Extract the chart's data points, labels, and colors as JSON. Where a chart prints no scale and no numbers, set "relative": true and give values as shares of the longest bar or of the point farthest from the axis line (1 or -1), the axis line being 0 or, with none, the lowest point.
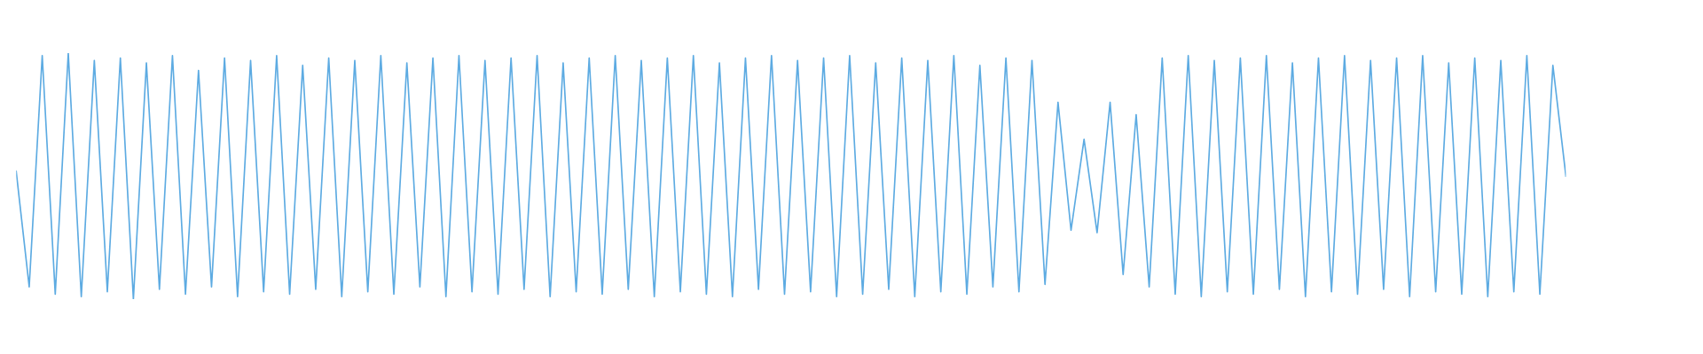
{
  "chart_data": {
    "type": "line",
    "relative": true,
    "color": "#5dabe2",
    "categories": [
      null,
      null,
      null,
      null,
      null,
      null,
      null,
      null,
      null,
      null,
      null,
      null,
      null,
      null,
      null,
      null,
      null,
      null,
      null,
      null,
      null,
      null,
      null,
      null,
      null,
      null,
      null,
      null,
      null,
      null,
      null,
      null,
      null,
      null,
      null,
      null,
      null,
      null,
      null,
      null,
      null,
      null,
      null,
      null,
      null,
      null,
      null,
      null,
      null,
      null,
      null,
      null,
      null,
      null,
      null,
      null,
      null,
      null,
      null,
      null,
      null,
      null,
      null,
      null,
      null,
      null,
      null,
      null,
      null,
      null,
      null,
      null,
      null,
      null,
      null,
      null,
      null,
      null,
      null,
      null,
      null,
      null,
      null,
      null,
      null,
      null,
      null,
      null,
      null,
      null,
      null,
      null,
      null,
      null,
      null,
      null,
      null,
      null,
      null,
      null,
      null,
      null,
      null,
      null,
      null,
      null,
      null,
      null,
      null,
      null,
      null,
      null,
      null,
      null,
      null,
      null,
      null,
      null,
      null,
      null
    ],
    "values": [
      0.52,
      0.05,
      0.99,
      0.02,
      1.0,
      0.01,
      0.97,
      0.03,
      0.98,
      0.0,
      0.96,
      0.04,
      0.99,
      0.02,
      0.93,
      0.05,
      0.98,
      0.01,
      0.97,
      0.03,
      0.99,
      0.02,
      0.95,
      0.04,
      0.98,
      0.01,
      0.97,
      0.03,
      0.99,
      0.02,
      0.96,
      0.05,
      0.98,
      0.01,
      0.99,
      0.03,
      0.97,
      0.02,
      0.98,
      0.04,
      0.99,
      0.01,
      0.96,
      0.03,
      0.98,
      0.02,
      0.99,
      0.04,
      0.97,
      0.01,
      0.98,
      0.03,
      0.99,
      0.02,
      0.96,
      0.01,
      0.98,
      0.04,
      0.99,
      0.02,
      0.97,
      0.03,
      0.98,
      0.01,
      0.99,
      0.02,
      0.96,
      0.04,
      0.98,
      0.01,
      0.97,
      0.03,
      0.99,
      0.02,
      0.95,
      0.05,
      0.98,
      0.03,
      0.97,
      0.06,
      0.8,
      0.28,
      0.65,
      0.27,
      0.8,
      0.1,
      0.75,
      0.05,
      0.98,
      0.02,
      0.99,
      0.01,
      0.97,
      0.03,
      0.98,
      0.02,
      0.99,
      0.04,
      0.96,
      0.01,
      0.98,
      0.03,
      0.99,
      0.02,
      0.97,
      0.04,
      0.98,
      0.01,
      0.99,
      0.03,
      0.96,
      0.02,
      0.98,
      0.01,
      0.97,
      0.03,
      0.99,
      0.02,
      0.95,
      0.5
    ]
  }
}
